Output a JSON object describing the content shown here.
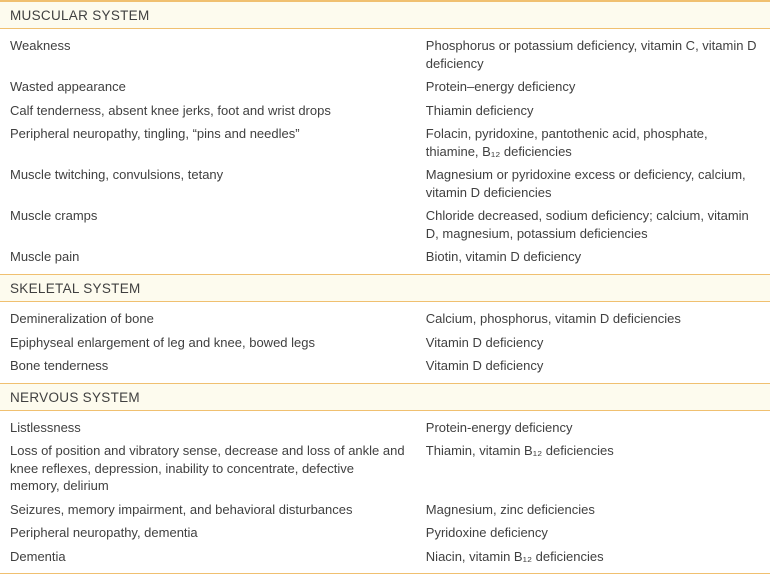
{
  "colors": {
    "border": "#f0c070",
    "header_bg": "#fdfbee",
    "body_bg": "#ffffff",
    "text": "#404040"
  },
  "sections": {
    "muscular": {
      "title": "MUSCULAR SYSTEM",
      "rows": {
        "r0": {
          "sign": "Weakness",
          "cause": "Phosphorus or potassium deficiency, vitamin C, vitamin D deficiency"
        },
        "r1": {
          "sign": "Wasted appearance",
          "cause": "Protein–energy deficiency"
        },
        "r2": {
          "sign": "Calf tenderness, absent knee jerks, foot and wrist drops",
          "cause": "Thiamin deficiency"
        },
        "r3": {
          "sign": "Peripheral neuropathy, tingling, “pins and needles”",
          "cause": "Folacin, pyridoxine, pantothenic acid, phosphate, thiamine, B₁₂ deficiencies"
        },
        "r4": {
          "sign": "Muscle twitching, convulsions, tetany",
          "cause": "Magnesium or pyridoxine excess or deficiency, calcium, vitamin D deficiencies"
        },
        "r5": {
          "sign": "Muscle cramps",
          "cause": "Chloride decreased, sodium deficiency; calcium, vitamin D, magnesium, potassium deficiencies"
        },
        "r6": {
          "sign": "Muscle pain",
          "cause": "Biotin, vitamin D deficiency"
        }
      }
    },
    "skeletal": {
      "title": "SKELETAL SYSTEM",
      "rows": {
        "r0": {
          "sign": "Demineralization of bone",
          "cause": "Calcium, phosphorus, vitamin D deficiencies"
        },
        "r1": {
          "sign": "Epiphyseal enlargement of leg and knee, bowed legs",
          "cause": "Vitamin D deficiency"
        },
        "r2": {
          "sign": "Bone tenderness",
          "cause": "Vitamin D deficiency"
        }
      }
    },
    "nervous": {
      "title": "NERVOUS SYSTEM",
      "rows": {
        "r0": {
          "sign": "Listlessness",
          "cause": "Protein-energy deficiency"
        },
        "r1": {
          "sign": "Loss of position and vibratory sense, decrease and loss of ankle and knee reflexes, depression, inability to concentrate, defective memory, delirium",
          "cause": "Thiamin, vitamin B₁₂ deficiencies"
        },
        "r2": {
          "sign": "Seizures, memory impairment, and behavioral disturbances",
          "cause": "Magnesium, zinc deficiencies"
        },
        "r3": {
          "sign": "Peripheral neuropathy, dementia",
          "cause": "Pyridoxine deficiency"
        },
        "r4": {
          "sign": "Dementia",
          "cause": "Niacin, vitamin B₁₂ deficiencies"
        }
      }
    }
  }
}
